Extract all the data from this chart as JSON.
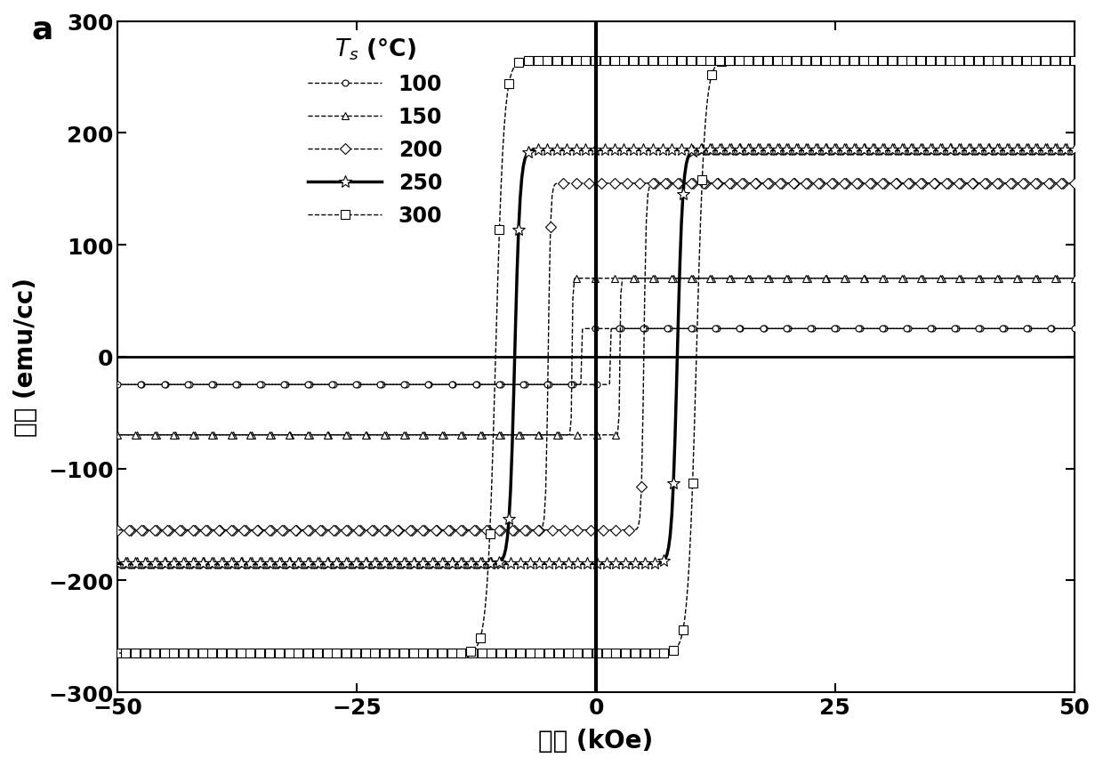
{
  "xlabel": "磁场 (kOe)",
  "ylabel": "磁距 (emu/cc)",
  "xlim": [
    -50,
    50
  ],
  "ylim": [
    -300,
    300
  ],
  "xticks": [
    -50,
    -25,
    0,
    25,
    50
  ],
  "yticks": [
    -300,
    -200,
    -100,
    0,
    100,
    200,
    300
  ],
  "legend_title": "$T_s$ (°C)",
  "panel_label": "a",
  "series": [
    {
      "label": "100",
      "Ms": 25,
      "Hc": 1.5,
      "marker": "o",
      "ms": 5,
      "lw": 1.0,
      "ls": "--",
      "steep": 40.0
    },
    {
      "label": "150",
      "Ms": 70,
      "Hc": 2.5,
      "marker": "^",
      "ms": 6,
      "lw": 1.0,
      "ls": "--",
      "steep": 30.0
    },
    {
      "label": "200",
      "Ms": 155,
      "Hc": 5.0,
      "marker": "D",
      "ms": 6,
      "lw": 1.0,
      "ls": "--",
      "steep": 20.0
    },
    {
      "label": "250",
      "Ms": 185,
      "Hc": 8.5,
      "marker": "*",
      "ms": 10,
      "lw": 2.5,
      "ls": "-",
      "steep": 15.0
    },
    {
      "label": "300",
      "Ms": 265,
      "Hc": 10.5,
      "marker": "s",
      "ms": 7,
      "lw": 1.0,
      "ls": "--",
      "steep": 12.0
    }
  ]
}
